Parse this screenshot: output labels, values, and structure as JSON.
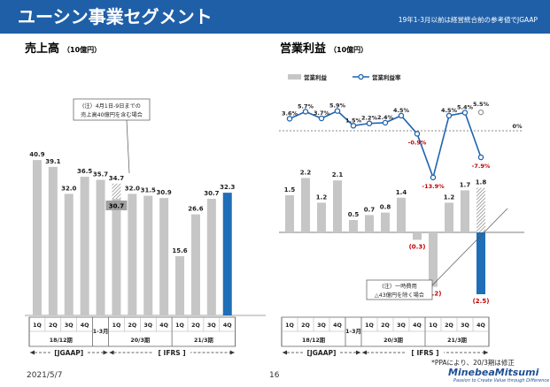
{
  "header": {
    "title": "ユーシン事業セグメント",
    "note": "19年1-3月以前は経営統合前の参考値でJGAAP"
  },
  "left": {
    "title": "売上高",
    "unit": "（10億円）"
  },
  "right": {
    "title": "営業利益",
    "unit": "（10億円）"
  },
  "notes": {
    "sales_line1": "(注）4月1日-9日までの",
    "sales_line2": "売上高40億円を含む場合",
    "profit_line1": "(注）一時費用",
    "profit_line2": "△43億円を除く場合",
    "ppa": "*PPAにより、20/3期は修正"
  },
  "legend": {
    "bar": "営業利益",
    "line": "営業利益率"
  },
  "axis": {
    "quarters": [
      "1Q",
      "2Q",
      "3Q",
      "4Q",
      "1-3月",
      "1Q",
      "2Q",
      "3Q",
      "4Q",
      "1Q",
      "2Q",
      "3Q",
      "4Q"
    ],
    "fy_labels": [
      "18/12期",
      "20/3期",
      "21/3期"
    ],
    "standards": [
      "[JGAAP]",
      "[ IFRS ]"
    ]
  },
  "colors": {
    "bar_gray": "#c6c6c6",
    "bar_blue": "#1f6eb8",
    "line": "#1f63b0",
    "highlight": "#2255a6"
  },
  "chart_data": [
    {
      "type": "bar",
      "title": "売上高",
      "ylabel": "10億円",
      "categories": [
        "18/12期 1Q",
        "18/12期 2Q",
        "18/12期 3Q",
        "18/12期 4Q",
        "1-3月",
        "20/3期 1Q",
        "20/3期 2Q",
        "20/3期 3Q",
        "20/3期 4Q",
        "21/3期 1Q",
        "21/3期 2Q",
        "21/3期 3Q",
        "21/3期 4Q"
      ],
      "values": [
        40.9,
        39.1,
        32.0,
        36.5,
        35.7,
        30.7,
        32.0,
        31.5,
        30.9,
        15.6,
        26.6,
        30.7,
        32.3
      ],
      "labels": [
        "40.9",
        "39.1",
        "32.0",
        "36.5",
        "35.7",
        "30.7",
        "32.0",
        "31.5",
        "30.9",
        "15.6",
        "26.6",
        "30.7",
        "32.3"
      ],
      "alt": {
        "index": 5,
        "value": 34.7,
        "label": "34.7"
      },
      "highlight_index": 12
    },
    {
      "type": "bar",
      "title": "営業利益",
      "ylabel": "10億円",
      "categories": [
        "18/12期 1Q",
        "18/12期 2Q",
        "18/12期 3Q",
        "18/12期 4Q",
        "1-3月",
        "20/3期 1Q",
        "20/3期 2Q",
        "20/3期 3Q",
        "20/3期 4Q",
        "21/3期 1Q",
        "21/3期 2Q",
        "21/3期 3Q",
        "21/3期 4Q"
      ],
      "series": [
        {
          "name": "営業利益",
          "values": [
            1.5,
            2.2,
            1.2,
            2.1,
            0.5,
            0.7,
            0.8,
            1.4,
            -0.3,
            -2.2,
            1.2,
            1.7,
            -2.5
          ],
          "labels": [
            "1.5",
            "2.2",
            "1.2",
            "2.1",
            "0.5",
            "0.7",
            "0.8",
            "1.4",
            "(0.3)",
            "(2.2)",
            "1.2",
            "1.7",
            "(2.5)"
          ]
        },
        {
          "name": "営業利益率",
          "values": [
            3.6,
            5.7,
            3.7,
            5.9,
            1.5,
            2.2,
            2.4,
            4.5,
            -0.9,
            -13.9,
            4.5,
            5.4,
            -7.9
          ],
          "labels": [
            "3.6%",
            "5.7%",
            "3.7%",
            "5.9%",
            "1.5%",
            "2.2%",
            "2.4%",
            "4.5%",
            "-0.9%",
            "-13.9%",
            "4.5%",
            "5.4%",
            "-7.9%"
          ]
        }
      ],
      "alt": {
        "index": 12,
        "value": 1.8,
        "label": "1.8",
        "rate": 5.5,
        "rate_label": "5.5%"
      },
      "zero_label": "0%",
      "highlight_index": 12
    }
  ],
  "footer": {
    "date": "2021/5/7",
    "page": "16",
    "brand": "MinebeaMitsumi",
    "tagline": "Passion to Create Value through Difference"
  }
}
